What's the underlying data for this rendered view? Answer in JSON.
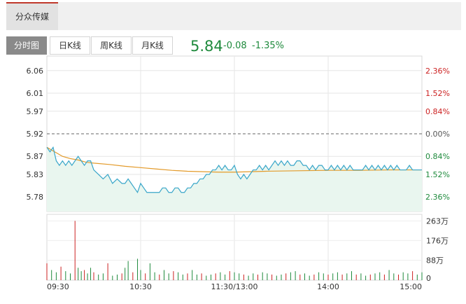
{
  "stock_tab": {
    "label": "分众传媒"
  },
  "tabs": [
    {
      "label": "分时图",
      "active": true
    },
    {
      "label": "日K线",
      "active": false
    },
    {
      "label": "周K线",
      "active": false
    },
    {
      "label": "月K线",
      "active": false
    }
  ],
  "quote": {
    "price": "5.84",
    "change": "-0.08",
    "change_pct": "-1.35%"
  },
  "colors": {
    "down": "#1e8a3c",
    "up": "#cc2222",
    "price_line": "#39a6c9",
    "avg_line": "#e39a29",
    "area": "#e9f6ef"
  },
  "chart_data": {
    "type": "line",
    "price_axis": {
      "min": 5.7477,
      "max": 6.0923,
      "prev_close": 5.92,
      "left_ticks": [
        "6.06",
        "6.01",
        "5.97",
        "5.92",
        "5.87",
        "5.83",
        "5.78"
      ],
      "tick_values": [
        6.06,
        6.01,
        5.97,
        5.92,
        5.87,
        5.83,
        5.78
      ],
      "right_ticks": [
        "2.36%",
        "1.52%",
        "0.84%",
        "0.00%",
        "0.84%",
        "1.52%",
        "2.36%"
      ]
    },
    "volume_axis": {
      "max": 292,
      "ticks": [
        "263万",
        "176万",
        "88万",
        "0"
      ],
      "tick_values": [
        263,
        176,
        88,
        0
      ]
    },
    "time_axis": {
      "labels": [
        "09:30",
        "10:30",
        "11:30/13:00",
        "14:00",
        "15:00"
      ],
      "label_minutes": [
        0,
        60,
        120,
        180,
        240
      ],
      "total_minutes": 240
    },
    "series": [
      {
        "role": "price",
        "x": [
          0,
          2,
          4,
          6,
          8,
          10,
          12,
          14,
          16,
          18,
          20,
          22,
          24,
          26,
          28,
          30,
          33,
          36,
          39,
          42,
          45,
          48,
          50,
          52,
          54,
          56,
          58,
          60,
          62,
          64,
          66,
          68,
          70,
          72,
          74,
          76,
          78,
          80,
          82,
          84,
          86,
          88,
          90,
          92,
          94,
          96,
          98,
          100,
          102,
          104,
          106,
          108,
          110,
          112,
          114,
          116,
          118,
          120,
          122,
          124,
          126,
          128,
          130,
          132,
          134,
          136,
          138,
          140,
          142,
          144,
          146,
          148,
          150,
          152,
          154,
          156,
          158,
          160,
          162,
          164,
          166,
          168,
          170,
          172,
          174,
          176,
          178,
          180,
          182,
          184,
          186,
          188,
          190,
          192,
          194,
          196,
          198,
          200,
          202,
          204,
          206,
          208,
          210,
          212,
          214,
          216,
          218,
          220,
          222,
          224,
          226,
          228,
          230,
          232,
          234,
          236,
          238,
          240
        ],
        "values": [
          5.89,
          5.88,
          5.89,
          5.86,
          5.85,
          5.86,
          5.85,
          5.86,
          5.85,
          5.86,
          5.87,
          5.86,
          5.85,
          5.86,
          5.86,
          5.84,
          5.83,
          5.82,
          5.83,
          5.81,
          5.82,
          5.81,
          5.81,
          5.82,
          5.81,
          5.8,
          5.79,
          5.81,
          5.8,
          5.79,
          5.79,
          5.79,
          5.79,
          5.79,
          5.8,
          5.8,
          5.79,
          5.79,
          5.8,
          5.8,
          5.79,
          5.79,
          5.8,
          5.8,
          5.81,
          5.81,
          5.82,
          5.82,
          5.83,
          5.83,
          5.84,
          5.84,
          5.85,
          5.84,
          5.85,
          5.84,
          5.84,
          5.85,
          5.83,
          5.82,
          5.83,
          5.82,
          5.83,
          5.84,
          5.84,
          5.85,
          5.84,
          5.85,
          5.84,
          5.85,
          5.86,
          5.85,
          5.86,
          5.85,
          5.86,
          5.85,
          5.85,
          5.86,
          5.86,
          5.85,
          5.85,
          5.84,
          5.85,
          5.84,
          5.85,
          5.85,
          5.84,
          5.84,
          5.85,
          5.84,
          5.85,
          5.84,
          5.85,
          5.84,
          5.85,
          5.84,
          5.84,
          5.84,
          5.84,
          5.85,
          5.84,
          5.85,
          5.84,
          5.85,
          5.84,
          5.85,
          5.84,
          5.85,
          5.84,
          5.85,
          5.84,
          5.84,
          5.84,
          5.85,
          5.84,
          5.84,
          5.84,
          5.84
        ]
      },
      {
        "role": "average",
        "x": [
          0,
          5,
          10,
          15,
          20,
          25,
          30,
          40,
          50,
          60,
          70,
          80,
          90,
          100,
          110,
          120,
          130,
          140,
          160,
          180,
          200,
          220,
          240
        ],
        "values": [
          5.89,
          5.88,
          5.87,
          5.865,
          5.862,
          5.857,
          5.855,
          5.852,
          5.848,
          5.845,
          5.842,
          5.839,
          5.837,
          5.836,
          5.835,
          5.835,
          5.836,
          5.837,
          5.838,
          5.839,
          5.839,
          5.84,
          5.84
        ]
      }
    ],
    "volume": {
      "x": [
        0,
        3,
        6,
        9,
        12,
        15,
        18,
        20,
        22,
        24,
        26,
        28,
        30,
        33,
        36,
        39,
        42,
        45,
        48,
        50,
        52,
        55,
        58,
        60,
        63,
        66,
        69,
        72,
        75,
        78,
        81,
        84,
        87,
        90,
        93,
        96,
        99,
        102,
        105,
        108,
        111,
        114,
        117,
        120,
        123,
        126,
        129,
        132,
        135,
        138,
        141,
        144,
        147,
        150,
        153,
        156,
        159,
        162,
        165,
        168,
        171,
        174,
        177,
        180,
        183,
        186,
        189,
        192,
        195,
        198,
        201,
        204,
        207,
        210,
        213,
        216,
        219,
        222,
        225,
        228,
        231,
        234,
        237,
        240
      ],
      "values": [
        75,
        45,
        35,
        60,
        40,
        30,
        263,
        55,
        40,
        45,
        30,
        55,
        35,
        25,
        30,
        75,
        20,
        25,
        30,
        55,
        85,
        35,
        95,
        45,
        30,
        75,
        35,
        25,
        45,
        30,
        40,
        35,
        25,
        30,
        45,
        25,
        30,
        20,
        25,
        30,
        35,
        25,
        40,
        35,
        30,
        25,
        20,
        30,
        25,
        35,
        30,
        25,
        20,
        25,
        30,
        35,
        40,
        25,
        30,
        20,
        25,
        35,
        30,
        25,
        30,
        35,
        25,
        30,
        40,
        25,
        30,
        20,
        25,
        30,
        35,
        25,
        45,
        30,
        25,
        35,
        30,
        40,
        25,
        35
      ]
    }
  }
}
